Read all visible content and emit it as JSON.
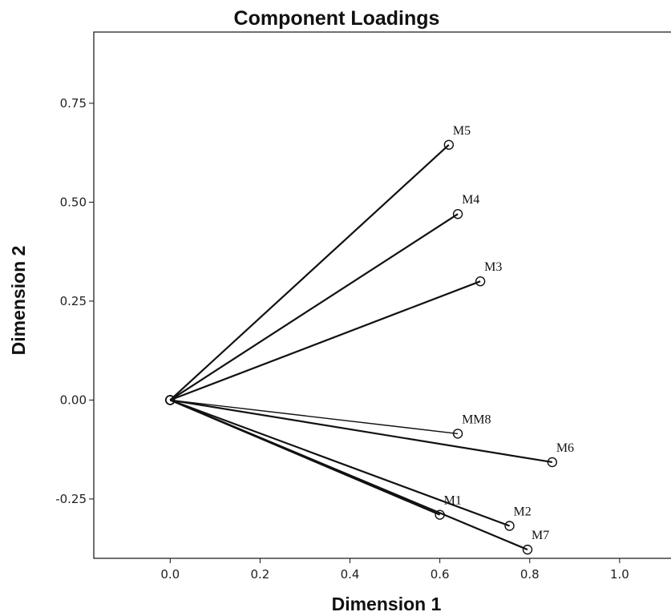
{
  "chart_data": {
    "type": "scatter",
    "title": "Component Loadings",
    "xlabel": "Dimension 1",
    "ylabel": "Dimension 2",
    "xlim": [
      -0.17,
      1.15
    ],
    "ylim": [
      -0.4,
      0.93
    ],
    "xticks": [
      0.0,
      0.2,
      0.4,
      0.6,
      0.8,
      1.0
    ],
    "xtick_labels": [
      "0.0",
      "0.2",
      "0.4",
      "0.6",
      "0.8",
      "1.0"
    ],
    "yticks": [
      -0.25,
      0.0,
      0.25,
      0.5,
      0.75
    ],
    "ytick_labels": [
      "-0.25",
      "0.00",
      "0.25",
      "0.50",
      "0.75"
    ],
    "grid": false,
    "origin": {
      "x": 0.0,
      "y": 0.0
    },
    "points": [
      {
        "label": "M5",
        "x": 0.62,
        "y": 0.645
      },
      {
        "label": "M4",
        "x": 0.64,
        "y": 0.47
      },
      {
        "label": "M3",
        "x": 0.69,
        "y": 0.3
      },
      {
        "label": "MM8",
        "x": 0.64,
        "y": -0.085
      },
      {
        "label": "M6",
        "x": 0.85,
        "y": -0.157
      },
      {
        "label": "M1",
        "x": 0.6,
        "y": -0.29
      },
      {
        "label": "M2",
        "x": 0.755,
        "y": -0.318
      },
      {
        "label": "M7",
        "x": 0.795,
        "y": -0.378
      }
    ]
  }
}
